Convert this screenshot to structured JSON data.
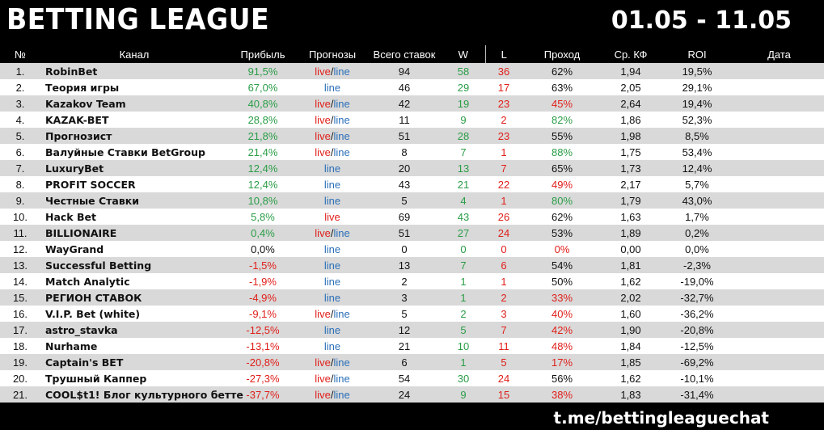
{
  "header": {
    "title": "BETTING LEAGUE",
    "date_range": "01.05 - 11.05"
  },
  "columns": [
    "№",
    "Канал",
    "Прибыль",
    "Прогнозы",
    "Всего ставок",
    "W",
    "L",
    "Проход",
    "Ср. КФ",
    "ROI",
    "Дата"
  ],
  "colors": {
    "positive": "#2a9d47",
    "negative": "#e0201b",
    "link_blue": "#2b6fb8"
  },
  "rows": [
    {
      "n": "1.",
      "name": "RobinBet",
      "profit": "91,5%",
      "pt": "pos",
      "live": "live",
      "sep": "/",
      "line": "line",
      "total": "94",
      "w": "58",
      "l": "36",
      "pass": "62%",
      "pass_c": "k",
      "kf": "1,94",
      "roi": "19,5%"
    },
    {
      "n": "2.",
      "name": "Теория игры",
      "profit": "67,0%",
      "pt": "pos",
      "live": "",
      "sep": "",
      "line": "line",
      "total": "46",
      "w": "29",
      "l": "17",
      "pass": "63%",
      "pass_c": "k",
      "kf": "2,05",
      "roi": "29,1%"
    },
    {
      "n": "3.",
      "name": "Kazakov Team",
      "profit": "40,8%",
      "pt": "pos",
      "live": "live",
      "sep": "/",
      "line": "line",
      "total": "42",
      "w": "19",
      "l": "23",
      "pass": "45%",
      "pass_c": "r",
      "kf": "2,64",
      "roi": "19,4%"
    },
    {
      "n": "4.",
      "name": "KAZAK-BET",
      "profit": "28,8%",
      "pt": "pos",
      "live": "live",
      "sep": "/",
      "line": "line",
      "total": "11",
      "w": "9",
      "l": "2",
      "pass": "82%",
      "pass_c": "g",
      "kf": "1,86",
      "roi": "52,3%"
    },
    {
      "n": "5.",
      "name": "Прогнозист",
      "profit": "21,8%",
      "pt": "pos",
      "live": "live",
      "sep": "/",
      "line": "line",
      "total": "51",
      "w": "28",
      "l": "23",
      "pass": "55%",
      "pass_c": "k",
      "kf": "1,98",
      "roi": "8,5%"
    },
    {
      "n": "6.",
      "name": "Валуйные Ставки BetGroup",
      "profit": "21,4%",
      "pt": "pos",
      "live": "live",
      "sep": "/",
      "line": "line",
      "total": "8",
      "w": "7",
      "l": "1",
      "pass": "88%",
      "pass_c": "g",
      "kf": "1,75",
      "roi": "53,4%"
    },
    {
      "n": "7.",
      "name": "LuxuryBet",
      "profit": "12,4%",
      "pt": "pos",
      "live": "",
      "sep": "",
      "line": "line",
      "total": "20",
      "w": "13",
      "l": "7",
      "pass": "65%",
      "pass_c": "k",
      "kf": "1,73",
      "roi": "12,4%"
    },
    {
      "n": "8.",
      "name": "PROFIT SOCCER",
      "profit": "12,4%",
      "pt": "pos",
      "live": "",
      "sep": "",
      "line": "line",
      "total": "43",
      "w": "21",
      "l": "22",
      "pass": "49%",
      "pass_c": "r",
      "kf": "2,17",
      "roi": "5,7%"
    },
    {
      "n": "9.",
      "name": "Честные Ставки",
      "profit": "10,8%",
      "pt": "pos",
      "live": "",
      "sep": "",
      "line": "line",
      "total": "5",
      "w": "4",
      "l": "1",
      "pass": "80%",
      "pass_c": "g",
      "kf": "1,79",
      "roi": "43,0%"
    },
    {
      "n": "10.",
      "name": "Hack Bet",
      "profit": "5,8%",
      "pt": "pos",
      "live": "live",
      "sep": "",
      "line": "",
      "total": "69",
      "w": "43",
      "l": "26",
      "pass": "62%",
      "pass_c": "k",
      "kf": "1,63",
      "roi": "1,7%"
    },
    {
      "n": "11.",
      "name": "BILLIONAIRE",
      "profit": "0,4%",
      "pt": "pos",
      "live": "live",
      "sep": "/",
      "line": "line",
      "total": "51",
      "w": "27",
      "l": "24",
      "pass": "53%",
      "pass_c": "k",
      "kf": "1,89",
      "roi": "0,2%"
    },
    {
      "n": "12.",
      "name": "WayGrand",
      "profit": "0,0%",
      "pt": "zero",
      "live": "",
      "sep": "",
      "line": "line",
      "total": "0",
      "w": "0",
      "l": "0",
      "pass": "0%",
      "pass_c": "r",
      "kf": "0,00",
      "roi": "0,0%"
    },
    {
      "n": "13.",
      "name": "Successful Betting",
      "profit": "-1,5%",
      "pt": "neg",
      "live": "",
      "sep": "",
      "line": "line",
      "total": "13",
      "w": "7",
      "l": "6",
      "pass": "54%",
      "pass_c": "k",
      "kf": "1,81",
      "roi": "-2,3%"
    },
    {
      "n": "14.",
      "name": "Match Analytic",
      "profit": "-1,9%",
      "pt": "neg",
      "live": "",
      "sep": "",
      "line": "line",
      "total": "2",
      "w": "1",
      "l": "1",
      "pass": "50%",
      "pass_c": "k",
      "kf": "1,62",
      "roi": "-19,0%"
    },
    {
      "n": "15.",
      "name": "РЕГИОН СТАВОК",
      "profit": "-4,9%",
      "pt": "neg",
      "live": "",
      "sep": "",
      "line": "line",
      "total": "3",
      "w": "1",
      "l": "2",
      "pass": "33%",
      "pass_c": "r",
      "kf": "2,02",
      "roi": "-32,7%"
    },
    {
      "n": "16.",
      "name": "V.I.P. Bet (white)",
      "profit": "-9,1%",
      "pt": "neg",
      "live": "live",
      "sep": "/",
      "line": "line",
      "total": "5",
      "w": "2",
      "l": "3",
      "pass": "40%",
      "pass_c": "r",
      "kf": "1,60",
      "roi": "-36,2%"
    },
    {
      "n": "17.",
      "name": "astro_stavka",
      "profit": "-12,5%",
      "pt": "neg",
      "live": "",
      "sep": "",
      "line": "line",
      "total": "12",
      "w": "5",
      "l": "7",
      "pass": "42%",
      "pass_c": "r",
      "kf": "1,90",
      "roi": "-20,8%"
    },
    {
      "n": "18.",
      "name": "Nurhame",
      "profit": "-13,1%",
      "pt": "neg",
      "live": "",
      "sep": "",
      "line": "line",
      "total": "21",
      "w": "10",
      "l": "11",
      "pass": "48%",
      "pass_c": "r",
      "kf": "1,84",
      "roi": "-12,5%"
    },
    {
      "n": "19.",
      "name": "Captain's BET",
      "profit": "-20,8%",
      "pt": "neg",
      "live": "live",
      "sep": "/",
      "line": "line",
      "total": "6",
      "w": "1",
      "l": "5",
      "pass": "17%",
      "pass_c": "r",
      "kf": "1,85",
      "roi": "-69,2%"
    },
    {
      "n": "20.",
      "name": "Трушный Каппер",
      "profit": "-27,3%",
      "pt": "neg",
      "live": "live",
      "sep": "/",
      "line": "line",
      "total": "54",
      "w": "30",
      "l": "24",
      "pass": "56%",
      "pass_c": "k",
      "kf": "1,62",
      "roi": "-10,1%"
    },
    {
      "n": "21.",
      "name": "COOL$t1! Блог культурного бетте",
      "profit": "-37,7%",
      "pt": "neg",
      "live": "live",
      "sep": "/",
      "line": "line",
      "total": "24",
      "w": "9",
      "l": "15",
      "pass": "38%",
      "pass_c": "r",
      "kf": "1,83",
      "roi": "-31,4%"
    }
  ],
  "footer": {
    "link": "t.me/bettingleaguechat"
  }
}
